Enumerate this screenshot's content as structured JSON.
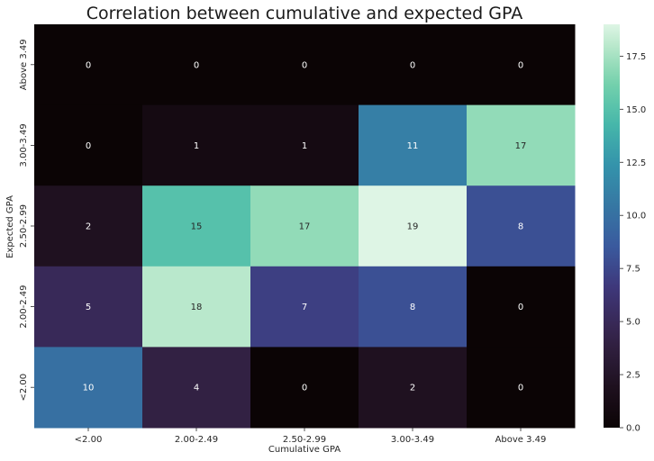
{
  "chart_data": {
    "type": "heatmap",
    "title": "Correlation between cumulative and expected GPA",
    "xlabel": "Cumulative GPA",
    "ylabel": "Expected GPA",
    "x_categories": [
      "<2.00",
      "2.00-2.49",
      "2.50-2.99",
      "3.00-3.49",
      "Above 3.49"
    ],
    "y_categories": [
      "Above 3.49",
      "3.00-3.49",
      "2.50-2.99",
      "2.00-2.49",
      "<2.00"
    ],
    "values": [
      [
        0,
        0,
        0,
        0,
        0
      ],
      [
        0,
        1,
        1,
        11,
        17
      ],
      [
        2,
        15,
        17,
        19,
        8
      ],
      [
        5,
        18,
        7,
        8,
        0
      ],
      [
        10,
        4,
        0,
        2,
        0
      ]
    ],
    "colorbar": {
      "range": [
        0,
        19
      ],
      "ticks": [
        "0.0",
        "2.5",
        "5.0",
        "7.5",
        "10.0",
        "12.5",
        "15.0",
        "17.5"
      ]
    },
    "colormap": "mako",
    "annotations": true,
    "grid": false
  }
}
